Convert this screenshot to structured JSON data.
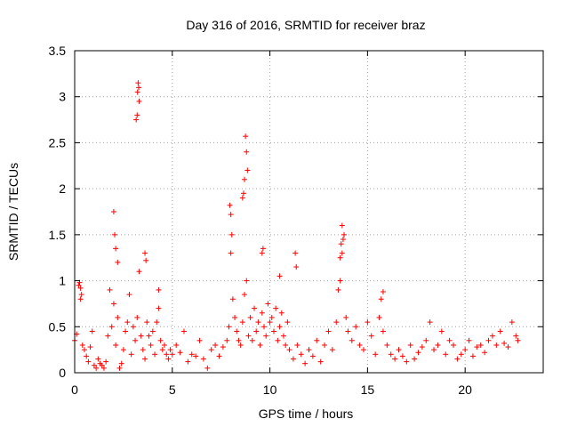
{
  "chart_data": {
    "type": "scatter",
    "title": "Day 316 of 2016, SRMTID for receiver braz",
    "xlabel": "GPS time / hours",
    "ylabel": "SRMTID / TECUs",
    "xlim": [
      0,
      24
    ],
    "ylim": [
      0,
      3.5
    ],
    "xticks": [
      0,
      5,
      10,
      15,
      20
    ],
    "yticks": [
      0,
      0.5,
      1,
      1.5,
      2,
      2.5,
      3,
      3.5
    ],
    "xtick_labels": [
      "0",
      "5",
      "10",
      "15",
      "20"
    ],
    "ytick_labels": [
      "0",
      "0.5",
      "1",
      "1.5",
      "2",
      "2.5",
      "3",
      "3.5"
    ],
    "grid": true,
    "marker": "plus",
    "color": "#ff0000",
    "series": [
      {
        "name": "SRMTID",
        "x": [
          0.0,
          0.1,
          0.2,
          0.3,
          0.4,
          0.5,
          0.6,
          0.7,
          0.8,
          0.9,
          1.0,
          1.1,
          1.2,
          1.3,
          1.4,
          1.5,
          1.6,
          1.7,
          1.8,
          1.9,
          2.0,
          2.1,
          2.2,
          2.3,
          2.4,
          2.5,
          2.6,
          2.7,
          2.8,
          2.9,
          3.0,
          3.1,
          3.2,
          3.3,
          3.4,
          3.5,
          3.6,
          3.7,
          3.8,
          3.9,
          4.0,
          4.1,
          4.2,
          4.3,
          4.4,
          4.5,
          4.6,
          4.7,
          4.8,
          4.9,
          5.0,
          5.2,
          5.4,
          5.6,
          5.8,
          6.0,
          6.2,
          6.4,
          6.6,
          6.8,
          7.0,
          7.2,
          7.4,
          7.6,
          7.8,
          7.9,
          8.0,
          8.1,
          8.2,
          8.3,
          8.4,
          8.5,
          8.6,
          8.7,
          8.8,
          8.9,
          9.0,
          9.1,
          9.2,
          9.3,
          9.4,
          9.5,
          9.6,
          9.7,
          9.8,
          9.9,
          10.0,
          10.1,
          10.2,
          10.3,
          10.4,
          10.5,
          10.6,
          10.7,
          10.8,
          10.9,
          11.0,
          11.2,
          11.4,
          11.6,
          11.8,
          12.0,
          12.2,
          12.4,
          12.6,
          12.8,
          13.0,
          13.2,
          13.4,
          13.5,
          13.6,
          13.7,
          13.8,
          13.9,
          14.0,
          14.2,
          14.4,
          14.6,
          14.8,
          15.0,
          15.2,
          15.4,
          15.6,
          15.7,
          15.8,
          16.0,
          16.2,
          16.4,
          16.6,
          16.8,
          17.0,
          17.2,
          17.4,
          17.6,
          17.8,
          18.0,
          18.2,
          18.4,
          18.6,
          18.8,
          19.0,
          19.2,
          19.4,
          19.6,
          19.8,
          20.0,
          20.2,
          20.4,
          20.6,
          20.8,
          21.0,
          21.2,
          21.4,
          21.6,
          21.8,
          22.0,
          22.2,
          22.4,
          22.6,
          22.7,
          3.22,
          3.25,
          3.28,
          3.3,
          3.2,
          3.15,
          8.75,
          8.8,
          8.85,
          8.7,
          8.65,
          8.6,
          2.0,
          2.05,
          2.1,
          2.2,
          13.7,
          13.75,
          13.65,
          13.6,
          0.25,
          0.3,
          0.35,
          7.95,
          8.0,
          8.05,
          9.6,
          9.65,
          10.5,
          11.3,
          11.35,
          15.8,
          3.6,
          3.65,
          4.3
        ],
        "y": [
          0.35,
          0.42,
          0.95,
          0.8,
          0.3,
          0.25,
          0.18,
          0.12,
          0.28,
          0.45,
          0.08,
          0.05,
          0.15,
          0.1,
          0.08,
          0.05,
          0.12,
          0.4,
          0.9,
          0.5,
          0.75,
          0.3,
          0.6,
          0.05,
          0.1,
          0.25,
          0.45,
          0.55,
          0.85,
          0.2,
          0.5,
          0.35,
          0.6,
          1.1,
          0.4,
          0.25,
          0.15,
          0.55,
          0.4,
          0.3,
          0.45,
          0.2,
          0.55,
          0.7,
          0.35,
          0.25,
          0.3,
          0.2,
          0.15,
          0.25,
          0.2,
          0.3,
          0.22,
          0.45,
          0.12,
          0.2,
          0.18,
          0.35,
          0.15,
          0.05,
          0.25,
          0.3,
          0.18,
          0.28,
          0.35,
          0.5,
          1.3,
          0.8,
          0.6,
          0.45,
          0.35,
          0.3,
          0.55,
          0.85,
          1.0,
          0.4,
          0.6,
          0.35,
          0.7,
          0.45,
          0.55,
          0.3,
          0.65,
          0.5,
          0.4,
          0.75,
          0.55,
          0.6,
          0.45,
          0.7,
          0.35,
          0.5,
          0.65,
          0.4,
          0.3,
          0.55,
          0.25,
          0.15,
          0.3,
          0.2,
          0.1,
          0.25,
          0.18,
          0.35,
          0.12,
          0.3,
          0.45,
          0.25,
          0.55,
          0.9,
          1.0,
          1.3,
          1.5,
          0.6,
          0.45,
          0.35,
          0.5,
          0.3,
          0.25,
          0.55,
          0.4,
          0.2,
          0.6,
          0.8,
          0.45,
          0.3,
          0.2,
          0.15,
          0.25,
          0.18,
          0.12,
          0.3,
          0.15,
          0.22,
          0.28,
          0.35,
          0.55,
          0.25,
          0.3,
          0.45,
          0.2,
          0.35,
          0.3,
          0.15,
          0.2,
          0.25,
          0.35,
          0.18,
          0.28,
          0.3,
          0.22,
          0.35,
          0.4,
          0.3,
          0.45,
          0.32,
          0.28,
          0.55,
          0.4,
          0.35,
          3.05,
          3.15,
          3.1,
          2.95,
          2.8,
          2.75,
          2.57,
          2.4,
          2.2,
          2.1,
          1.95,
          1.9,
          1.75,
          1.5,
          1.35,
          1.2,
          1.6,
          1.45,
          1.4,
          1.25,
          0.98,
          0.92,
          0.85,
          1.82,
          1.72,
          1.5,
          1.3,
          1.35,
          1.05,
          1.3,
          1.15,
          0.88,
          1.3,
          1.22,
          0.9
        ]
      }
    ]
  }
}
